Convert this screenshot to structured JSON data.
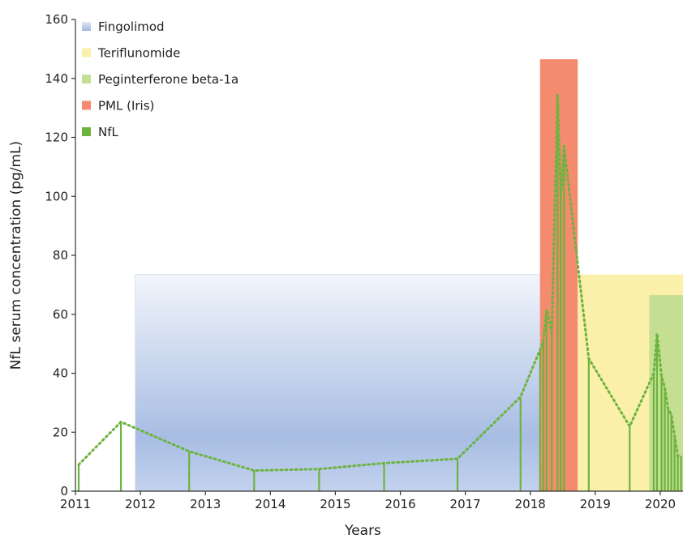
{
  "chart_data": {
    "type": "bar",
    "title": "",
    "xlabel": "Years",
    "ylabel": "NfL serum concentration (pg/mL)",
    "xlim": [
      2011,
      2020.35
    ],
    "ylim": [
      0,
      160
    ],
    "x_ticks": [
      2011,
      2012,
      2013,
      2014,
      2015,
      2016,
      2017,
      2018,
      2019,
      2020
    ],
    "y_ticks": [
      0,
      20,
      40,
      60,
      80,
      100,
      120,
      140,
      160
    ],
    "grid": false,
    "legend_position": "top-left",
    "legend": [
      {
        "label": "Fingolimod",
        "color": "#9fb5e0",
        "style": "gradient"
      },
      {
        "label": "Teriflunomide",
        "color": "#faf0aa"
      },
      {
        "label": "Peginterferone beta-1a",
        "color": "#c5df92"
      },
      {
        "label": "PML (Iris)",
        "color": "#f48b6e"
      },
      {
        "label": "NfL",
        "color": "#6db33f"
      }
    ],
    "treatment_periods": [
      {
        "name": "Fingolimod",
        "start": 2011.92,
        "end": 2018.15,
        "height": 73.5,
        "color": "#9fb5e0"
      },
      {
        "name": "PML (Iris)",
        "start": 2018.15,
        "end": 2018.73,
        "height": 146.5,
        "color": "#f48b6e"
      },
      {
        "name": "Teriflunomide",
        "start": 2018.73,
        "end": 2020.35,
        "height": 73.5,
        "color": "#faf0aa"
      },
      {
        "name": "Peginterferone beta-1a",
        "start": 2019.83,
        "end": 2020.35,
        "height": 66.5,
        "color": "#c5df92"
      }
    ],
    "series": [
      {
        "name": "NfL",
        "color": "#6db33f",
        "points": [
          {
            "x": 2011.05,
            "y": 9
          },
          {
            "x": 2011.7,
            "y": 23.5
          },
          {
            "x": 2012.75,
            "y": 13.5
          },
          {
            "x": 2013.75,
            "y": 7
          },
          {
            "x": 2014.75,
            "y": 7.5
          },
          {
            "x": 2015.75,
            "y": 9.5
          },
          {
            "x": 2016.88,
            "y": 11
          },
          {
            "x": 2017.85,
            "y": 32
          },
          {
            "x": 2018.15,
            "y": 48
          },
          {
            "x": 2018.2,
            "y": 51
          },
          {
            "x": 2018.25,
            "y": 61.5
          },
          {
            "x": 2018.33,
            "y": 54
          },
          {
            "x": 2018.42,
            "y": 134.5
          },
          {
            "x": 2018.47,
            "y": 100
          },
          {
            "x": 2018.52,
            "y": 117
          },
          {
            "x": 2018.9,
            "y": 45
          },
          {
            "x": 2019.53,
            "y": 22
          },
          {
            "x": 2019.9,
            "y": 40
          },
          {
            "x": 2019.95,
            "y": 53.5
          },
          {
            "x": 2020.02,
            "y": 39
          },
          {
            "x": 2020.07,
            "y": 35
          },
          {
            "x": 2020.12,
            "y": 28
          },
          {
            "x": 2020.17,
            "y": 26
          },
          {
            "x": 2020.22,
            "y": 19
          },
          {
            "x": 2020.27,
            "y": 12
          },
          {
            "x": 2020.32,
            "y": 12
          }
        ]
      }
    ]
  }
}
